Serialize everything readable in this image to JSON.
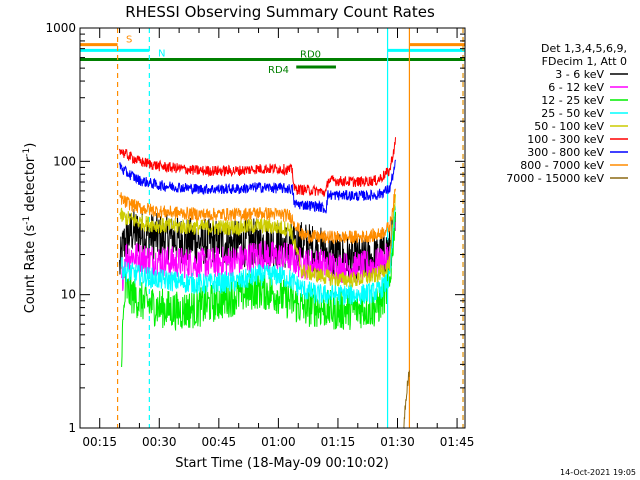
{
  "chart_data": {
    "type": "line",
    "title": "RHESSI Observing Summary Count Rates",
    "xlabel": "Start Time (18-May-09 00:10:02)",
    "ylabel": "Count Rate (s⁻¹ detector⁻¹)",
    "ylabel_main": "Count Rate (s",
    "ylabel_sup1": "-1",
    "ylabel_mid": " detector",
    "ylabel_sup2": "-1",
    "ylabel_end": ")",
    "y_scale": "log",
    "ylim": [
      1,
      1000
    ],
    "xlim": [
      "00:10:02",
      "01:47:00"
    ],
    "x_ticks": [
      "00:15",
      "00:30",
      "00:45",
      "01:00",
      "01:15",
      "01:30",
      "01:45"
    ],
    "y_ticks": [
      "1",
      "10",
      "100",
      "1000"
    ],
    "footer": "14-Oct-2021 19:05",
    "legend": {
      "placement": "right",
      "header": [
        "Det 1,3,4,5,6,9,",
        "FDecim 1, Att 0"
      ],
      "entries": [
        {
          "label": "3 - 6 keV",
          "color": "#000000"
        },
        {
          "label": "6 - 12 keV",
          "color": "#ff00ff"
        },
        {
          "label": "12 - 25 keV",
          "color": "#00ee00"
        },
        {
          "label": "25 - 50 keV",
          "color": "#00ffff"
        },
        {
          "label": "50 - 100 keV",
          "color": "#cccc00"
        },
        {
          "label": "100 - 300 keV",
          "color": "#ff0000"
        },
        {
          "label": "300 - 800 keV",
          "color": "#0000ff"
        },
        {
          "label": "800 - 7000 keV",
          "color": "#ff8c00"
        },
        {
          "label": "7000 - 15000 keV",
          "color": "#8b6914"
        }
      ]
    },
    "flags": [
      {
        "label": "S",
        "color": "#ff8c00",
        "y": 750,
        "segments": [
          [
            "00:10:02",
            "00:19:30"
          ],
          [
            "01:33:00",
            "01:47:00"
          ]
        ]
      },
      {
        "label": "N",
        "color": "#00ffff",
        "y": 680,
        "segments": [
          [
            "00:10:02",
            "00:27:30"
          ],
          [
            "01:27:30",
            "01:47:00"
          ]
        ]
      },
      {
        "label": "RD0",
        "color": "#008000",
        "y": 580,
        "segments": [
          [
            "00:10:02",
            "01:47:00"
          ]
        ]
      },
      {
        "label": "RD4",
        "color": "#008000",
        "y": 510,
        "segments": [
          [
            "01:04:30",
            "01:14:30"
          ]
        ]
      }
    ],
    "vlines": [
      {
        "t": "00:19:30",
        "color": "#ff8c00",
        "style": "dashed"
      },
      {
        "t": "00:27:30",
        "color": "#00ffff",
        "style": "dashed"
      },
      {
        "t": "01:27:30",
        "color": "#00ffff",
        "style": "solid"
      },
      {
        "t": "01:33:00",
        "color": "#ff8c00",
        "style": "solid"
      },
      {
        "t": "01:46:30",
        "color": "#00ffff",
        "style": "dashed"
      },
      {
        "t": "01:46:30",
        "color": "#ff8c00",
        "style": "dashed"
      }
    ],
    "series": [
      {
        "name": "3 - 6 keV",
        "color": "#000000",
        "noise": 0.18,
        "x": [
          "00:20:00",
          "00:21:00",
          "00:23:00",
          "00:27:00",
          "00:30:00",
          "00:40:00",
          "00:50:00",
          "00:55:00",
          "01:00:00",
          "01:03:00",
          "01:06:00",
          "01:10:00",
          "01:14:00",
          "01:20:00",
          "01:25:00",
          "01:28:00",
          "01:29:30"
        ],
        "y": [
          16,
          24,
          30,
          28,
          27,
          25,
          24,
          25,
          24,
          23,
          24,
          22,
          19,
          18,
          19,
          22,
          30
        ]
      },
      {
        "name": "6 - 12 keV",
        "color": "#ff00ff",
        "noise": 0.12,
        "x": [
          "00:20:30",
          "00:21:30",
          "00:25:00",
          "00:30:00",
          "00:40:00",
          "00:50:00",
          "00:55:00",
          "01:00:00",
          "01:03:00",
          "01:06:00",
          "01:10:00",
          "01:15:00",
          "01:20:00",
          "01:25:00",
          "01:28:00",
          "01:29:30"
        ],
        "y": [
          12,
          20,
          19,
          18,
          17,
          18,
          20,
          19,
          19,
          17,
          17,
          16,
          16,
          17,
          19,
          35
        ]
      },
      {
        "name": "12 - 25 keV",
        "color": "#00ee00",
        "noise": 0.15,
        "x": [
          "00:20:30",
          "00:21:30",
          "00:25:00",
          "00:30:00",
          "00:35:00",
          "00:40:00",
          "00:50:00",
          "00:55:00",
          "01:00:00",
          "01:03:00",
          "01:06:00",
          "01:10:00",
          "01:15:00",
          "01:20:00",
          "01:25:00",
          "01:28:00",
          "01:29:30"
        ],
        "y": [
          4,
          11,
          9,
          8,
          7.5,
          8,
          10,
          11,
          10,
          9,
          8,
          8,
          7.5,
          7.8,
          8,
          12,
          45
        ]
      },
      {
        "name": "25 - 50 keV",
        "color": "#00ffff",
        "noise": 0.08,
        "x": [
          "00:20:30",
          "00:21:30",
          "00:25:00",
          "00:30:00",
          "00:40:00",
          "00:50:00",
          "00:55:00",
          "01:00:00",
          "01:03:00",
          "01:06:00",
          "01:10:00",
          "01:15:00",
          "01:20:00",
          "01:25:00",
          "01:28:00",
          "01:29:30"
        ],
        "y": [
          16,
          15,
          14,
          13,
          12,
          12.5,
          14,
          14,
          13,
          11,
          10,
          10,
          10,
          10.5,
          13,
          50
        ]
      },
      {
        "name": "50 - 100 keV",
        "color": "#cccc00",
        "noise": 0.06,
        "x": [
          "00:20:00",
          "00:21:00",
          "00:25:00",
          "00:30:00",
          "00:40:00",
          "00:50:00",
          "00:55:00",
          "01:00:00",
          "01:03:00",
          "01:06:00",
          "01:10:00",
          "01:15:00",
          "01:20:00",
          "01:25:00",
          "01:28:00",
          "01:29:30"
        ],
        "y": [
          40,
          38,
          35,
          33,
          32,
          32,
          33,
          32,
          31,
          15,
          14,
          13,
          13,
          14,
          17,
          55
        ]
      },
      {
        "name": "100 - 300 keV",
        "color": "#ff0000",
        "noise": 0.04,
        "x": [
          "00:20:00",
          "00:21:00",
          "00:25:00",
          "00:30:00",
          "00:40:00",
          "00:50:00",
          "00:55:00",
          "01:00:00",
          "01:03:30",
          "01:04:00",
          "01:10:00",
          "01:12:00",
          "01:12:30",
          "01:20:00",
          "01:25:00",
          "01:28:00",
          "01:29:30"
        ],
        "y": [
          125,
          115,
          100,
          92,
          85,
          85,
          88,
          88,
          86,
          62,
          60,
          58,
          72,
          70,
          72,
          85,
          140
        ]
      },
      {
        "name": "300 - 800 keV",
        "color": "#0000ff",
        "noise": 0.04,
        "x": [
          "00:20:00",
          "00:21:00",
          "00:25:00",
          "00:30:00",
          "00:40:00",
          "00:50:00",
          "00:55:00",
          "01:00:00",
          "01:03:30",
          "01:04:00",
          "01:10:00",
          "01:12:00",
          "01:12:30",
          "01:20:00",
          "01:25:00",
          "01:28:00",
          "01:29:30"
        ],
        "y": [
          95,
          85,
          72,
          66,
          62,
          62,
          64,
          63,
          62,
          48,
          46,
          44,
          56,
          55,
          56,
          62,
          95
        ]
      },
      {
        "name": "800 - 7000 keV",
        "color": "#ff8c00",
        "noise": 0.05,
        "x": [
          "00:20:00",
          "00:21:00",
          "00:25:00",
          "00:30:00",
          "00:40:00",
          "00:50:00",
          "00:55:00",
          "01:00:00",
          "01:03:00",
          "01:06:00",
          "01:10:00",
          "01:15:00",
          "01:20:00",
          "01:25:00",
          "01:28:00",
          "01:29:30"
        ],
        "y": [
          55,
          50,
          45,
          42,
          40,
          40,
          41,
          40,
          39,
          28,
          27,
          27,
          27,
          28,
          32,
          60
        ]
      },
      {
        "name": "7000 - 15000 keV",
        "color": "#8b6914",
        "noise": 0.05,
        "x": [
          "01:31:30",
          "01:32:00",
          "01:32:30",
          "01:33:00"
        ],
        "y": [
          1,
          1.5,
          2.2,
          2.8
        ]
      }
    ]
  }
}
